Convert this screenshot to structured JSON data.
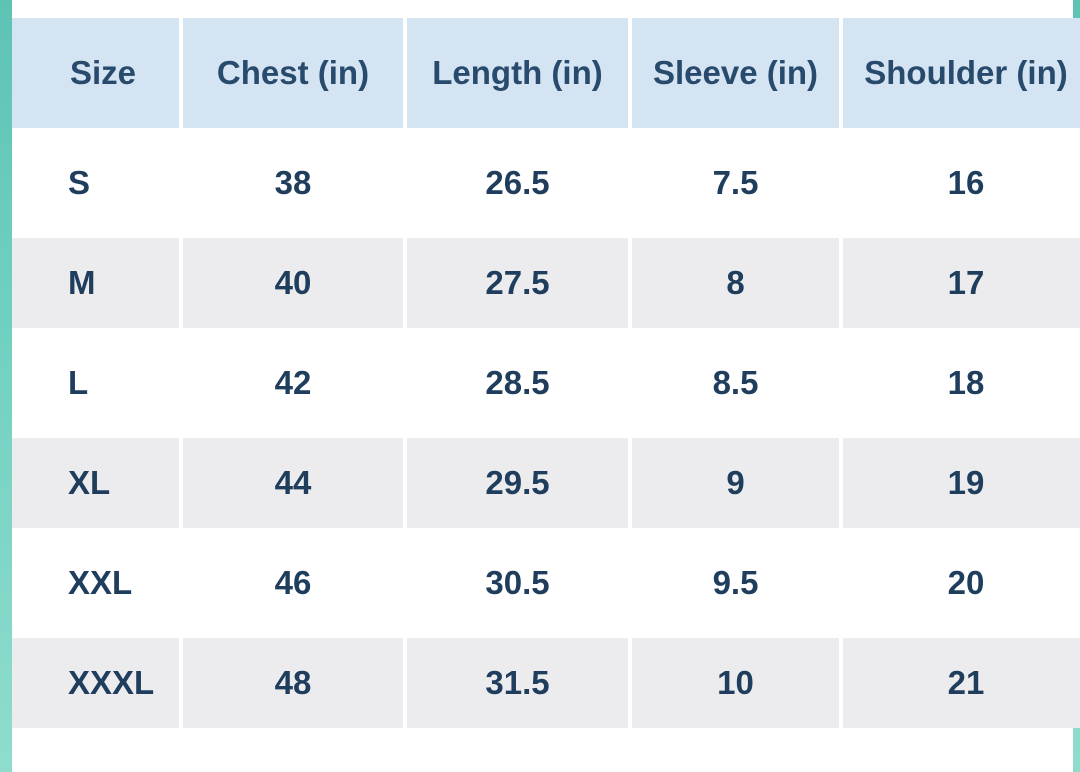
{
  "table": {
    "headers": [
      "Size",
      "Chest (in)",
      "Length (in)",
      "Sleeve (in)",
      "Shoulder (in)"
    ],
    "rows": [
      [
        "S",
        "38",
        "26.5",
        "7.5",
        "16"
      ],
      [
        "M",
        "40",
        "27.5",
        "8",
        "17"
      ],
      [
        "L",
        "42",
        "28.5",
        "8.5",
        "18"
      ],
      [
        "XL",
        "44",
        "29.5",
        "9",
        "19"
      ],
      [
        "XXL",
        "46",
        "30.5",
        "9.5",
        "20"
      ],
      [
        "XXXL",
        "48",
        "31.5",
        "10",
        "21"
      ]
    ]
  },
  "colors": {
    "header_bg": "#d4e4f2",
    "alt_row_bg": "#ececef",
    "text": "#1f3d5c",
    "frame_accent": "#6fd0c0"
  }
}
